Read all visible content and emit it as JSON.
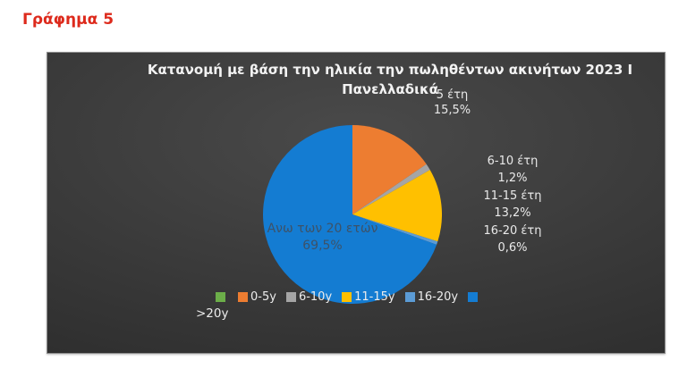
{
  "page": {
    "heading": "Γράφημα 5"
  },
  "chart_data": {
    "type": "pie",
    "title": "Κατανομή με βάση την ηλικία την πωληθέντων ακινήτων 2023 Ι Πανελλαδικά",
    "title_line1": "Κατανομή με βάση την ηλικία την πωληθέντων ακινήτων 2023 Ι",
    "title_line2": "Πανελλαδικά",
    "categories": [
      "0-5 έτη",
      "6-10 έτη",
      "11-15 έτη",
      "16-20 έτη",
      "Ανω των 20 ετών"
    ],
    "values": [
      15.5,
      1.2,
      13.2,
      0.6,
      69.5
    ],
    "colors": [
      "#ED7D31",
      "#A5A5A5",
      "#FFC000",
      "#5B9BD5",
      "#147CD2"
    ],
    "start_angle": "12-oclock",
    "direction": "clockwise",
    "legend_position": "bottom",
    "background": "dark-gray-gradient",
    "data_labels": {
      "slice_0_5": {
        "name": "5 έτη",
        "pct": "15,5%"
      },
      "slice_6_10": {
        "name": "6-10 έτη",
        "pct": "1,2%"
      },
      "slice_11_15": {
        "name": "11-15 έτη",
        "pct": "13,2%"
      },
      "slice_16_20": {
        "name": "16-20 έτη",
        "pct": "0,6%"
      },
      "slice_over_20": {
        "name": "Ανω των 20 ετών",
        "pct": "69,5%"
      }
    }
  },
  "legend": {
    "items": [
      {
        "label": "",
        "color": "#6CAE49"
      },
      {
        "label": "0-5y",
        "color": "#ED7D31"
      },
      {
        "label": "6-10y",
        "color": "#A5A5A5"
      },
      {
        "label": "11-15y",
        "color": "#FFC000"
      },
      {
        "label": "16-20y",
        "color": "#5B9BD5"
      },
      {
        "label": "",
        "color": "#147CD2"
      }
    ],
    "wrapped_label": ">20y"
  }
}
